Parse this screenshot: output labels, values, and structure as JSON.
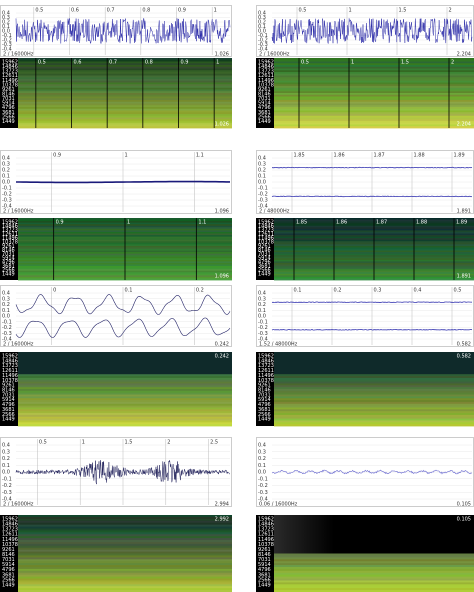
{
  "ylabels": [
    "0.4",
    "0.3",
    "0.2",
    "0.1",
    "0.0",
    "-0.1",
    "-0.2",
    "-0.3",
    "-0.4"
  ],
  "freq_labels": [
    "15962",
    "14846",
    "13723",
    "12611",
    "11496",
    "10378",
    "9261",
    "8146",
    "7031",
    "5914",
    "4796",
    "3681",
    "2566",
    "1449"
  ],
  "panels": [
    {
      "wave_ticks": [
        "0.5",
        "0.6",
        "0.7",
        "0.8",
        "0.9",
        "1"
      ],
      "info": "2 / 16000Hz",
      "wave_end": "1.026",
      "spec_ticks": [
        "0.5",
        "0.6",
        "0.7",
        "0.8",
        "0.9",
        "1"
      ],
      "spec_end": "1.026"
    },
    {
      "wave_ticks": [
        "0.5",
        "1",
        "1.5",
        "2"
      ],
      "info": "2 / 16000Hz",
      "wave_end": "2.204",
      "spec_ticks": [
        "0.5",
        "1",
        "1.5",
        "2"
      ],
      "spec_end": "2.204"
    },
    {
      "wave_ticks": [
        "0.9",
        "1",
        "1.1"
      ],
      "info": "2 / 16000Hz",
      "wave_end": "1.096",
      "spec_ticks": [
        "0.9",
        "1",
        "1.1"
      ],
      "spec_end": "1.096"
    },
    {
      "wave_ticks": [
        "1.85",
        "1.86",
        "1.87",
        "1.88",
        "1.89"
      ],
      "info": "2 / 48000Hz",
      "wave_end": "1.891",
      "spec_ticks": [
        "1.85",
        "1.86",
        "1.87",
        "1.88",
        "1.89"
      ],
      "spec_end": "1.891"
    },
    {
      "wave_ticks": [
        "0",
        "0.1",
        "0.2"
      ],
      "info": "2 / 16000Hz",
      "wave_end": "0.242",
      "spec_ticks": [],
      "spec_end": "0.242"
    },
    {
      "wave_ticks": [
        "0.1",
        "0.2",
        "0.3",
        "0.4",
        "0.5"
      ],
      "info": "1.52 / 48000Hz",
      "wave_end": "0.582",
      "spec_ticks": [],
      "spec_end": "0.582"
    },
    {
      "wave_ticks": [
        "0.5",
        "1",
        "1.5",
        "2",
        "2.5"
      ],
      "info": "2 / 16000Hz",
      "wave_end": "2.994",
      "spec_ticks": [],
      "spec_end": "2.992"
    },
    {
      "wave_ticks": [],
      "info": "0.06 / 16000Hz",
      "wave_end": "0.105",
      "spec_ticks": [],
      "spec_end": "0.105"
    }
  ]
}
